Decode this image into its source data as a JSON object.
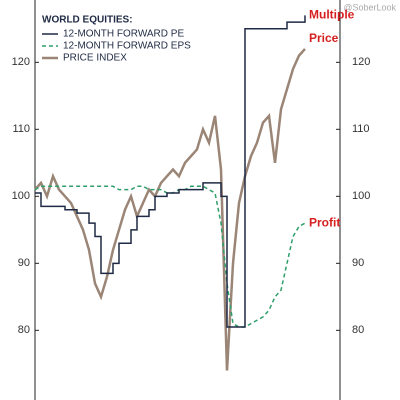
{
  "chart_data": {
    "type": "line",
    "legend_title": "WORLD EQUITIES:",
    "watermark": "@SoberLook",
    "annotations": [
      {
        "text": "Multiple",
        "series": 0
      },
      {
        "text": "Price",
        "series": 2
      },
      {
        "text": "Profit",
        "series": 1
      }
    ],
    "ylim": [
      69.6,
      129.3
    ],
    "yticks": [
      80,
      90,
      100,
      110,
      120
    ],
    "legend": "upper left",
    "series": [
      {
        "name": "12-MONTH FORWARD PE",
        "color": "#1f2a44",
        "style": "step",
        "values": [
          100.5,
          98.5,
          98.5,
          98.5,
          98.5,
          98,
          98,
          97.5,
          97.5,
          96,
          94,
          88.5,
          88.5,
          90,
          93,
          93,
          95,
          97,
          97,
          98,
          100,
          100,
          100.5,
          100.5,
          101,
          101,
          101,
          101,
          102,
          102,
          102,
          100,
          80.5,
          80.5,
          80.5,
          125,
          125,
          125,
          125,
          125,
          125,
          125,
          126,
          126,
          126,
          127
        ]
      },
      {
        "name": "12-MONTH FORWARD EPS",
        "color": "#2e9e6a",
        "style": "dashed",
        "values": [
          101,
          101.5,
          101.5,
          101.5,
          101.5,
          101.5,
          101.5,
          101.5,
          101.5,
          101.5,
          101.5,
          101.5,
          101.5,
          101.5,
          101,
          101,
          101,
          101.5,
          101.5,
          101,
          101,
          101,
          100.5,
          100.5,
          101,
          101,
          101.5,
          101.5,
          101.5,
          101,
          100.5,
          96,
          87,
          81,
          80.5,
          80.5,
          81,
          81.5,
          82,
          83,
          85,
          86,
          90,
          94,
          95.5,
          96
        ]
      },
      {
        "name": "PRICE INDEX",
        "color": "#9a8576",
        "style": "solid",
        "values": [
          101,
          102,
          100,
          103,
          101,
          100,
          99,
          97,
          95,
          92,
          87,
          85,
          88,
          92,
          95,
          98,
          100,
          97,
          99,
          101,
          100,
          102,
          103,
          104,
          103,
          105,
          106,
          107,
          110,
          108,
          112,
          104,
          74,
          90,
          99,
          103,
          106,
          108,
          111,
          112,
          105,
          113,
          116,
          119,
          121,
          122
        ]
      }
    ]
  }
}
